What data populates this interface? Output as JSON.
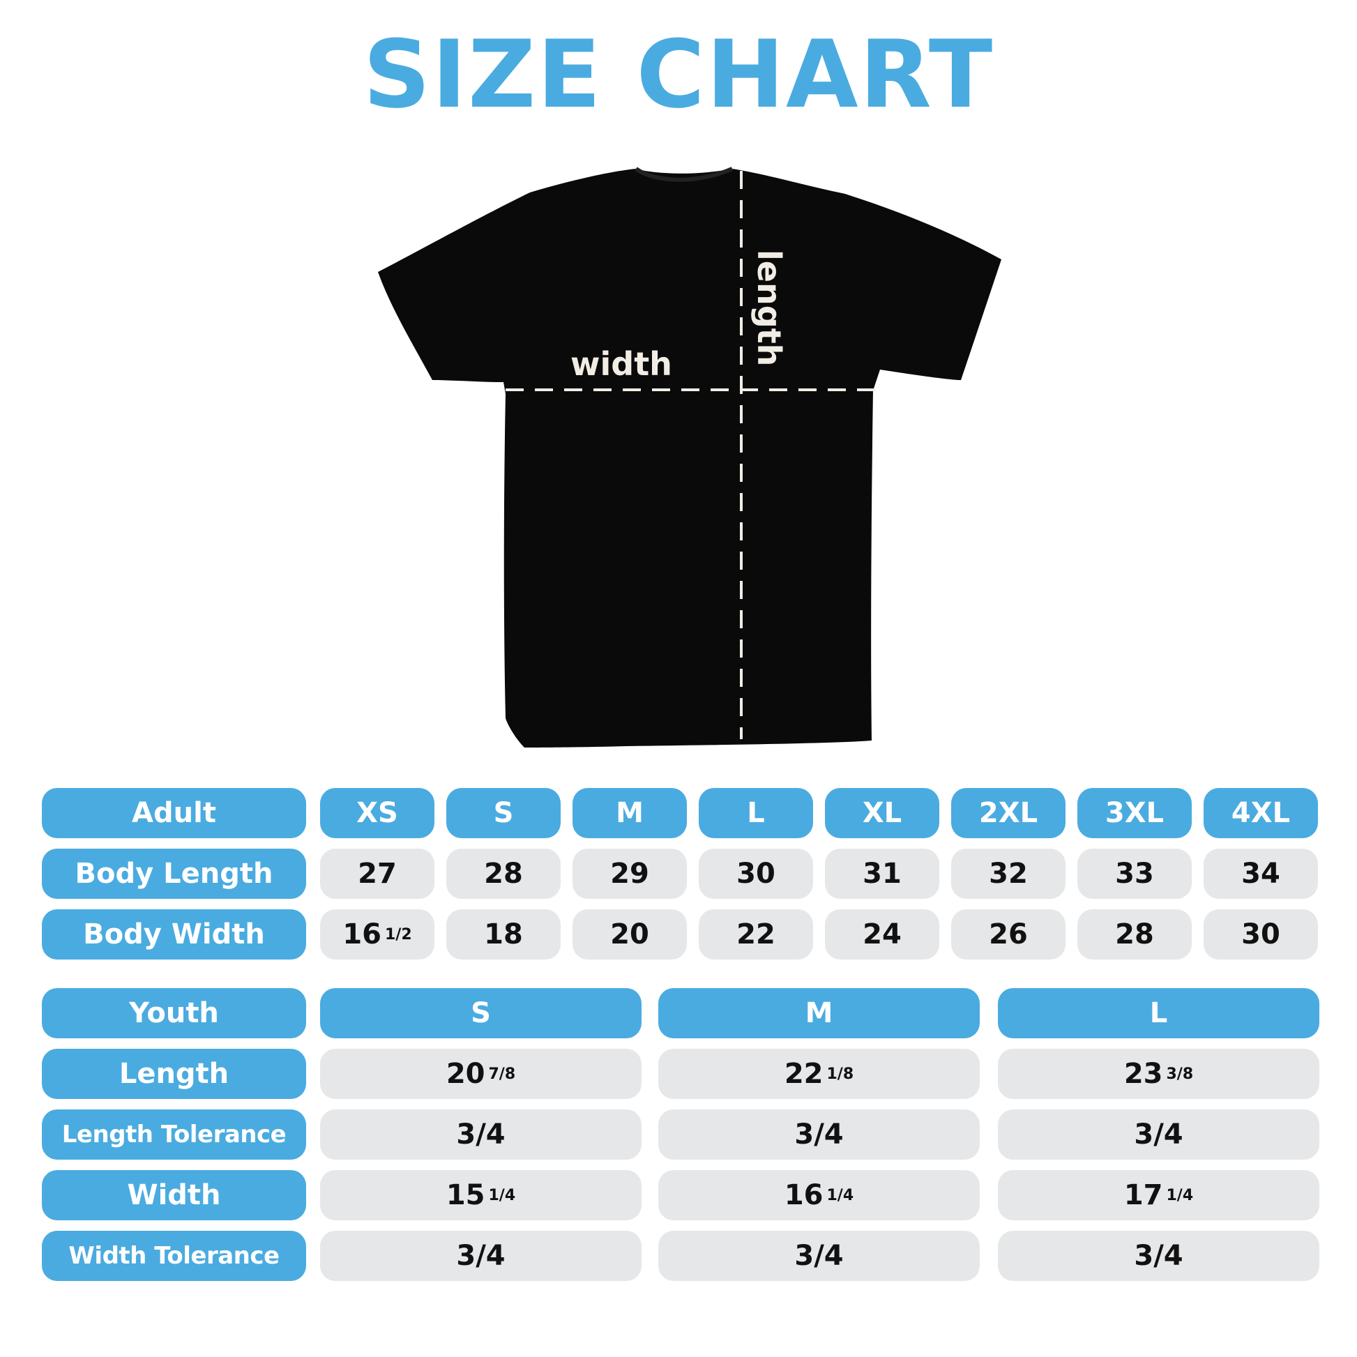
{
  "title": "SIZE CHART",
  "diagram": {
    "width_label": "width",
    "length_label": "length",
    "shirt_color": "#000000",
    "accent": "#4aabe0"
  },
  "adult": {
    "header": "Adult",
    "sizes": [
      "XS",
      "S",
      "M",
      "L",
      "XL",
      "2XL",
      "3XL",
      "4XL"
    ],
    "rows": [
      {
        "label": "Body Length",
        "values": [
          [
            "27",
            ""
          ],
          [
            "28",
            ""
          ],
          [
            "29",
            ""
          ],
          [
            "30",
            ""
          ],
          [
            "31",
            ""
          ],
          [
            "32",
            ""
          ],
          [
            "33",
            ""
          ],
          [
            "34",
            ""
          ]
        ]
      },
      {
        "label": "Body Width",
        "values": [
          [
            "16",
            "1/2"
          ],
          [
            "18",
            ""
          ],
          [
            "20",
            ""
          ],
          [
            "22",
            ""
          ],
          [
            "24",
            ""
          ],
          [
            "26",
            ""
          ],
          [
            "28",
            ""
          ],
          [
            "30",
            ""
          ]
        ]
      }
    ]
  },
  "youth": {
    "header": "Youth",
    "sizes": [
      "S",
      "M",
      "L"
    ],
    "rows": [
      {
        "label": "Length",
        "values": [
          [
            "20",
            "7/8"
          ],
          [
            "22",
            "1/8"
          ],
          [
            "23",
            "3/8"
          ]
        ]
      },
      {
        "label": "Length Tolerance",
        "values": [
          [
            "3/4",
            ""
          ],
          [
            "3/4",
            ""
          ],
          [
            "3/4",
            ""
          ]
        ]
      },
      {
        "label": "Width",
        "values": [
          [
            "15",
            "1/4"
          ],
          [
            "16",
            "1/4"
          ],
          [
            "17",
            "1/4"
          ]
        ]
      },
      {
        "label": "Width Tolerance",
        "values": [
          [
            "3/4",
            ""
          ],
          [
            "3/4",
            ""
          ],
          [
            "3/4",
            ""
          ]
        ]
      }
    ]
  }
}
